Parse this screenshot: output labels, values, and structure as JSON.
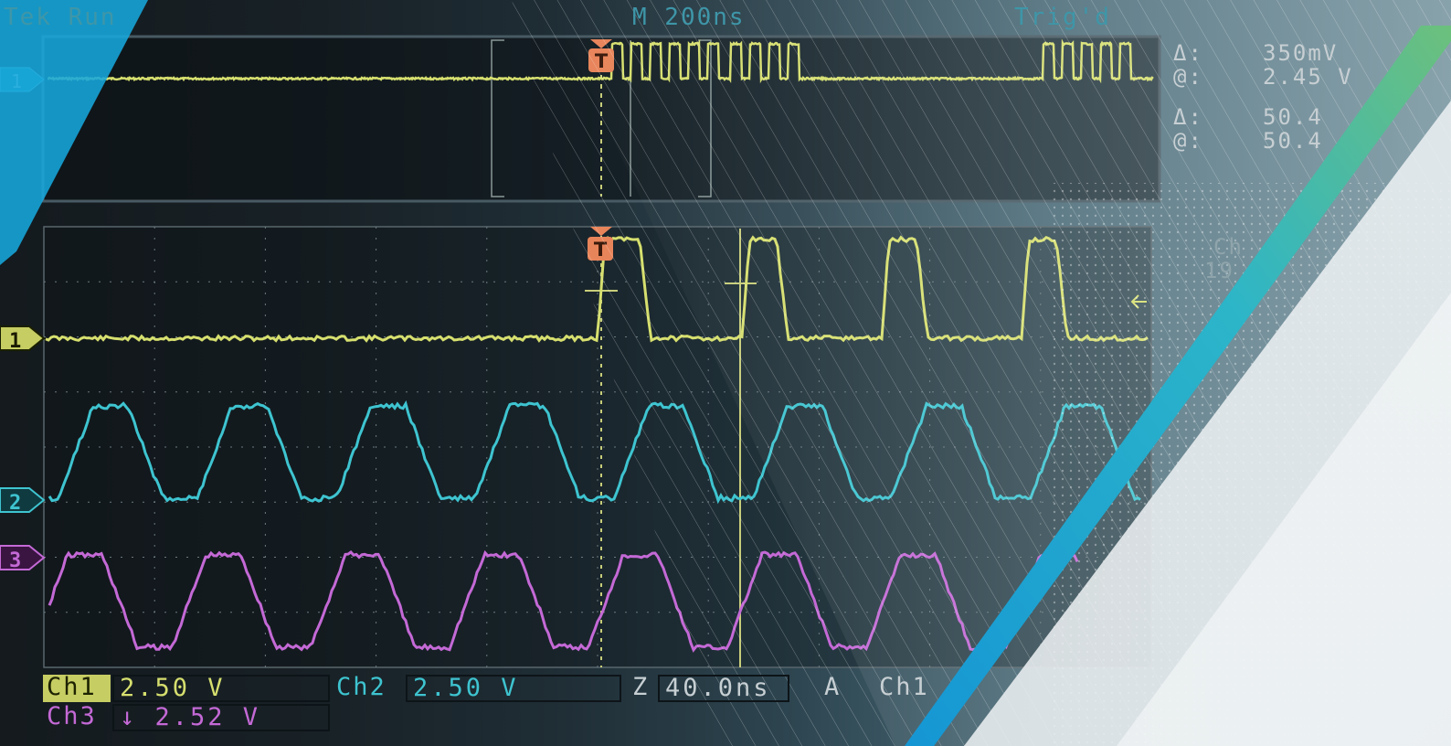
{
  "header": {
    "status": "Tek Run",
    "timebase": "M 200ns",
    "trigger_state": "Trig'd"
  },
  "readouts": {
    "delta_symbol": "Δ:",
    "at_symbol": "@:",
    "cursor1_delta": "350mV",
    "cursor1_at": "2.45 V",
    "cursor2_delta": "50.4",
    "cursor2_at": "50.4",
    "side_label": "Ch",
    "side_value": "19"
  },
  "markers": {
    "trigger": "T",
    "overview_ch1": "1",
    "ch1": "1",
    "ch2": "2",
    "ch3": "3"
  },
  "channels": [
    {
      "id": "Ch1",
      "label": "Ch1",
      "scale": "2.50 V",
      "color": "#d6df6e"
    },
    {
      "id": "Ch2",
      "label": "Ch2",
      "scale": "2.50 V",
      "color": "#3ec4d0"
    },
    {
      "id": "Ch3",
      "label": "Ch3",
      "scale": "↓ 2.52 V",
      "color": "#c469d6"
    }
  ],
  "status_bar": {
    "zoom_label": "Z",
    "zoom_value": "40.0ns",
    "trigger_mode": "A",
    "trigger_source": "Ch1"
  },
  "colors": {
    "ch1": "#d6df6e",
    "ch2": "#3ec4d0",
    "ch3": "#c469d6",
    "trigger_marker": "#e8845a",
    "accent_blue": "#1aa3d9",
    "accent_green": "#6cc07c"
  }
}
